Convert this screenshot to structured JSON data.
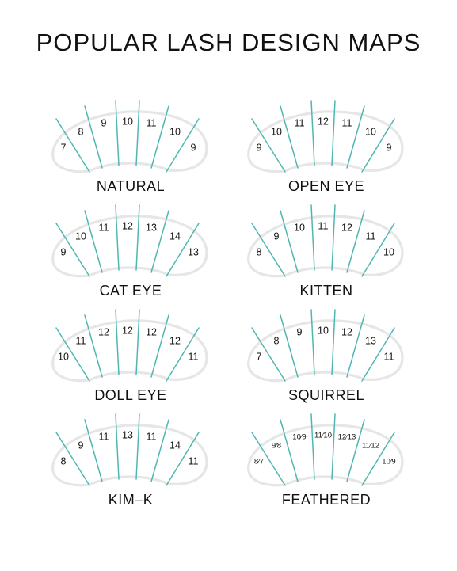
{
  "title": "POPULAR LASH DESIGN MAPS",
  "colors": {
    "line": "#4fb7b1",
    "eye": "#e6e6e6",
    "text": "#111111"
  },
  "maps": [
    {
      "name": "NATURAL",
      "lengths": [
        "7",
        "8",
        "9",
        "10",
        "11",
        "10",
        "9"
      ]
    },
    {
      "name": "OPEN EYE",
      "lengths": [
        "9",
        "10",
        "11",
        "12",
        "11",
        "10",
        "9"
      ]
    },
    {
      "name": "CAT EYE",
      "lengths": [
        "9",
        "10",
        "11",
        "12",
        "13",
        "14",
        "13"
      ]
    },
    {
      "name": "KITTEN",
      "lengths": [
        "8",
        "9",
        "10",
        "11",
        "12",
        "11",
        "10"
      ]
    },
    {
      "name": "DOLL EYE",
      "lengths": [
        "10",
        "11",
        "12",
        "12",
        "12",
        "12",
        "11"
      ]
    },
    {
      "name": "SQUIRREL",
      "lengths": [
        "7",
        "8",
        "9",
        "10",
        "12",
        "13",
        "11"
      ]
    },
    {
      "name": "KIM–K",
      "lengths": [
        "8",
        "9",
        "11",
        "13",
        "11",
        "14",
        "11"
      ]
    },
    {
      "name": "FEATHERED",
      "lengths": [
        "8⁄7",
        "9⁄8",
        "10⁄9",
        "11⁄10",
        "12⁄13",
        "11⁄12",
        "10⁄9"
      ]
    }
  ]
}
